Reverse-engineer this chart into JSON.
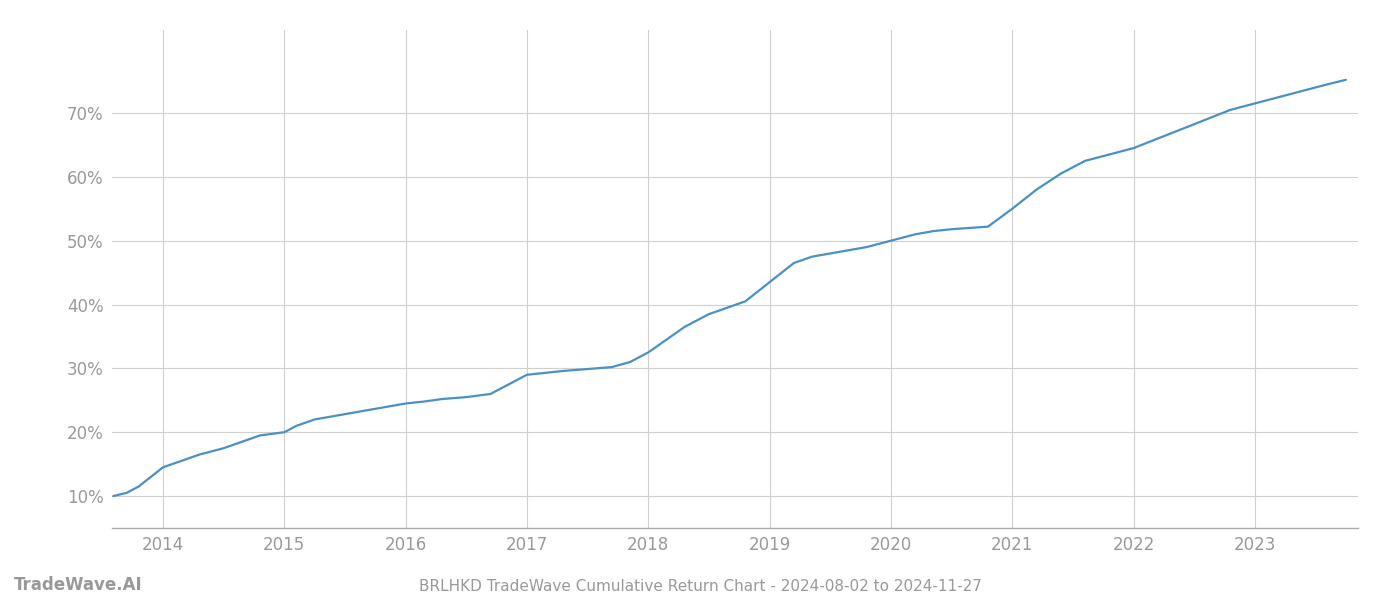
{
  "title": "BRLHKD TradeWave Cumulative Return Chart - 2024-08-02 to 2024-11-27",
  "watermark": "TradeWave.AI",
  "line_color": "#4a90c4",
  "background_color": "#ffffff",
  "grid_color": "#d0d0d0",
  "axis_color": "#aaaaaa",
  "text_color": "#999999",
  "x_years": [
    2014,
    2015,
    2016,
    2017,
    2018,
    2019,
    2020,
    2021,
    2022,
    2023
  ],
  "x_data": [
    2013.59,
    2013.7,
    2013.8,
    2013.9,
    2014.0,
    2014.15,
    2014.3,
    2014.5,
    2014.65,
    2014.8,
    2015.0,
    2015.1,
    2015.25,
    2015.4,
    2015.55,
    2015.7,
    2015.85,
    2016.0,
    2016.15,
    2016.3,
    2016.5,
    2016.7,
    2016.85,
    2017.0,
    2017.15,
    2017.3,
    2017.5,
    2017.7,
    2017.85,
    2018.0,
    2018.15,
    2018.3,
    2018.5,
    2018.65,
    2018.8,
    2019.0,
    2019.1,
    2019.2,
    2019.35,
    2019.5,
    2019.65,
    2019.8,
    2020.0,
    2020.1,
    2020.2,
    2020.35,
    2020.5,
    2020.65,
    2020.8,
    2021.0,
    2021.2,
    2021.4,
    2021.6,
    2021.8,
    2022.0,
    2022.2,
    2022.4,
    2022.6,
    2022.8,
    2023.0,
    2023.2,
    2023.4,
    2023.6,
    2023.75
  ],
  "y_data": [
    10.0,
    10.5,
    11.5,
    13.0,
    14.5,
    15.5,
    16.5,
    17.5,
    18.5,
    19.5,
    20.0,
    21.0,
    22.0,
    22.5,
    23.0,
    23.5,
    24.0,
    24.5,
    24.8,
    25.2,
    25.5,
    26.0,
    27.5,
    29.0,
    29.3,
    29.6,
    29.9,
    30.2,
    31.0,
    32.5,
    34.5,
    36.5,
    38.5,
    39.5,
    40.5,
    43.5,
    45.0,
    46.5,
    47.5,
    48.0,
    48.5,
    49.0,
    50.0,
    50.5,
    51.0,
    51.5,
    51.8,
    52.0,
    52.2,
    55.0,
    58.0,
    60.5,
    62.5,
    63.5,
    64.5,
    66.0,
    67.5,
    69.0,
    70.5,
    71.5,
    72.5,
    73.5,
    74.5,
    75.2
  ],
  "yticks": [
    10,
    20,
    30,
    40,
    50,
    60,
    70
  ],
  "ylim": [
    5,
    83
  ],
  "xlim": [
    2013.58,
    2023.85
  ],
  "title_fontsize": 11,
  "tick_fontsize": 12,
  "watermark_fontsize": 12,
  "line_width": 1.6
}
